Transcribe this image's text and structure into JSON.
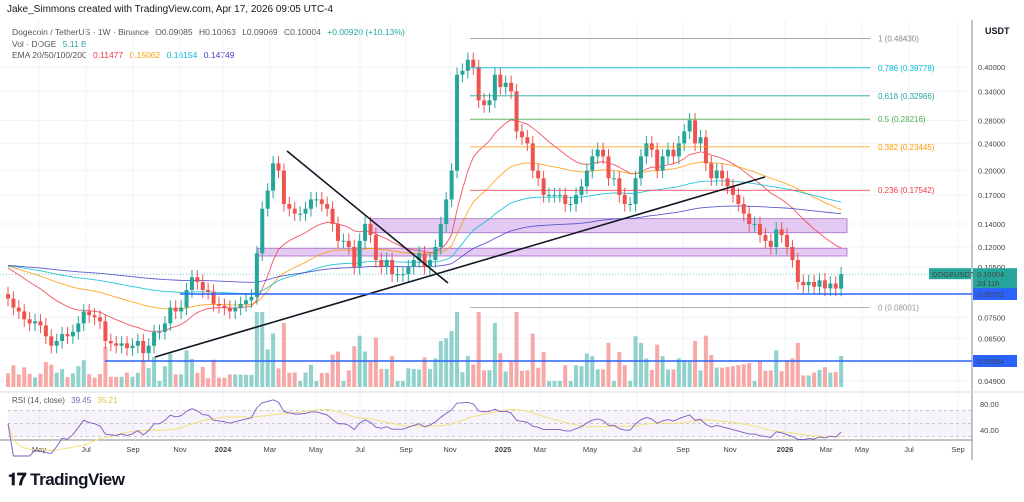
{
  "credit": "Jake_Simmons created with TradingView.com, Apr 17, 2026 09:05 UTC-4",
  "legend": {
    "symbol": "Dogecoin / TetherUS · 1W · Binance",
    "o": "O0.09085",
    "h": "H0.10063",
    "l": "L0.09069",
    "c": "C0.10004",
    "chg": "+0.00920 (+10.13%)",
    "vol_label": "Vol · DOGE",
    "vol_value": "5.11 B",
    "ema_label": "EMA 20/50/100/200",
    "ema20": "0.11477",
    "ema50": "0.15062",
    "ema100": "0.16154",
    "ema200": "0.14749",
    "rsi_label": "RSI (14, close)",
    "rsi": "39.45",
    "rsi_ma": "35.21"
  },
  "logo": "TradingView",
  "colors": {
    "up": "#26a69a",
    "down": "#ef5350",
    "ema20": "#f23645",
    "ema50": "#ff9800",
    "ema100": "#00bcd4",
    "ema200": "#3f3fc8",
    "level": "#2962ff",
    "zone": "#d9b3ec",
    "rsi": "#7e57c2",
    "rsi_ma": "#f2e27a"
  },
  "chart_data": {
    "type": "candlestick",
    "symbol": "DOGEUSDT",
    "interval": "1W",
    "yscale": "log",
    "currency": "USDT",
    "start_week": "2023-04-17",
    "closes": [
      0.085,
      0.08,
      0.078,
      0.074,
      0.072,
      0.073,
      0.071,
      0.066,
      0.062,
      0.064,
      0.067,
      0.066,
      0.068,
      0.072,
      0.078,
      0.076,
      0.075,
      0.073,
      0.064,
      0.063,
      0.062,
      0.063,
      0.061,
      0.062,
      0.064,
      0.059,
      0.062,
      0.068,
      0.068,
      0.072,
      0.08,
      0.078,
      0.08,
      0.09,
      0.098,
      0.095,
      0.09,
      0.089,
      0.082,
      0.081,
      0.08,
      0.078,
      0.08,
      0.082,
      0.084,
      0.086,
      0.115,
      0.155,
      0.175,
      0.21,
      0.2,
      0.16,
      0.155,
      0.15,
      0.15,
      0.155,
      0.165,
      0.165,
      0.16,
      0.155,
      0.14,
      0.125,
      0.125,
      0.12,
      0.105,
      0.125,
      0.14,
      0.13,
      0.11,
      0.105,
      0.11,
      0.1,
      0.1,
      0.1,
      0.105,
      0.11,
      0.115,
      0.105,
      0.11,
      0.12,
      0.14,
      0.165,
      0.2,
      0.38,
      0.39,
      0.42,
      0.4,
      0.32,
      0.31,
      0.32,
      0.38,
      0.35,
      0.36,
      0.34,
      0.26,
      0.25,
      0.24,
      0.2,
      0.19,
      0.17,
      0.17,
      0.17,
      0.17,
      0.16,
      0.16,
      0.17,
      0.18,
      0.2,
      0.22,
      0.23,
      0.22,
      0.19,
      0.19,
      0.17,
      0.16,
      0.16,
      0.19,
      0.22,
      0.24,
      0.23,
      0.2,
      0.22,
      0.23,
      0.22,
      0.24,
      0.26,
      0.28,
      0.24,
      0.25,
      0.21,
      0.19,
      0.2,
      0.19,
      0.18,
      0.17,
      0.16,
      0.15,
      0.14,
      0.14,
      0.13,
      0.125,
      0.12,
      0.135,
      0.13,
      0.12,
      0.11,
      0.095,
      0.093,
      0.095,
      0.092,
      0.096,
      0.091,
      0.094,
      0.09085,
      0.10004
    ],
    "price_axis": [
      "0.40000",
      "0.34000",
      "0.28000",
      "0.24000",
      "0.20000",
      "0.17000",
      "0.14000",
      "0.12000",
      "0.10500",
      "0.07500",
      "0.06500",
      "0.04900"
    ],
    "time_axis": [
      "May",
      "Jul",
      "Sep",
      "Nov",
      "2024",
      "Mar",
      "May",
      "Jul",
      "Sep",
      "Nov",
      "2025",
      "Mar",
      "May",
      "Jul",
      "Sep",
      "Nov",
      "2026",
      "Mar",
      "May",
      "Jul",
      "Sep"
    ],
    "fib_levels": [
      {
        "label": "1 (0.48430)",
        "price": 0.4843
      },
      {
        "label": "0.786 (0.39778)",
        "price": 0.39778
      },
      {
        "label": "0.618 (0.32986)",
        "price": 0.32986
      },
      {
        "label": "0.5 (0.28216)",
        "price": 0.28216
      },
      {
        "label": "0.382 (0.23445)",
        "price": 0.23445
      },
      {
        "label": "0.236 (0.17542)",
        "price": 0.17542
      },
      {
        "label": "0 (0.08001)",
        "price": 0.08001
      }
    ],
    "horizontal_levels": [
      "0.08732",
      "0.05564"
    ],
    "zones": [
      [
        0.132,
        0.145
      ],
      [
        0.113,
        0.119
      ]
    ],
    "last_price_label": "DOGEUSDT",
    "last_price": "0.10004",
    "countdown": "2d 11h",
    "rsi_axis": [
      "80.00",
      "40.00"
    ]
  }
}
